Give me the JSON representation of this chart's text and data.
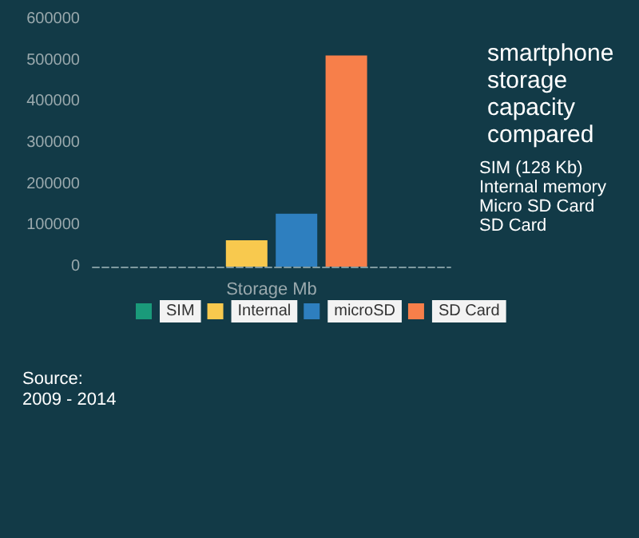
{
  "chart_data": {
    "type": "bar",
    "title": "smartphone storage capacity compared",
    "xlabel": "Storage Mb",
    "categories": [
      null
    ],
    "series": [
      {
        "name": "SIM",
        "color": "#1a9a7a",
        "values": [
          0
        ]
      },
      {
        "name": "Internal",
        "color": "#f8c94e",
        "values": [
          64000
        ]
      },
      {
        "name": "microSD",
        "color": "#2e7fbf",
        "values": [
          128000
        ]
      },
      {
        "name": "SD Card",
        "color": "#f77f4a",
        "values": [
          512000
        ]
      }
    ],
    "ylim": [
      0,
      600000
    ],
    "yticks": [
      0,
      100000,
      200000,
      300000,
      400000,
      500000,
      600000
    ],
    "grid": false,
    "legend": "bottom",
    "annotations": [
      "SIM (128 Kb)",
      "Internal memory",
      "Micro SD Card",
      "SD Card",
      "Source:",
      "2009 - 2014"
    ]
  }
}
